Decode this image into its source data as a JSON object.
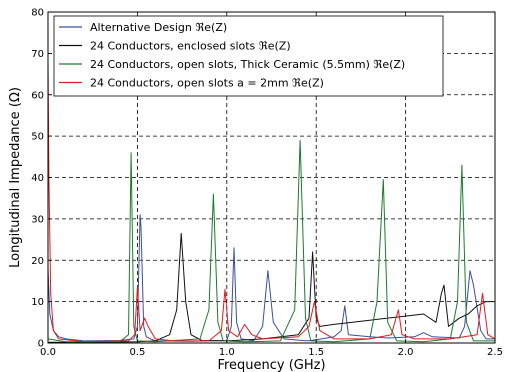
{
  "chart_data": {
    "type": "line",
    "title": "",
    "xlabel": "Frequency (GHz)",
    "ylabel": "Longitudinal Impedance (Ω)",
    "xlim": [
      0,
      2.5
    ],
    "ylim": [
      0,
      80
    ],
    "xticks": [
      0.0,
      0.5,
      1.0,
      1.5,
      2.0,
      2.5
    ],
    "xtick_labels": [
      "0.0",
      "0.5",
      "1.0",
      "1.5",
      "2.0",
      "2.5"
    ],
    "yticks": [
      0,
      10,
      20,
      30,
      40,
      50,
      60,
      70,
      80
    ],
    "ytick_labels": [
      "0",
      "10",
      "20",
      "30",
      "40",
      "50",
      "60",
      "70",
      "80"
    ],
    "grid": true,
    "legend_position": "top-left",
    "series": [
      {
        "name": "Alternative Design ℜe(Z)",
        "color": "#3b4fa0",
        "x": [
          0.0,
          0.01,
          0.03,
          0.06,
          0.1,
          0.2,
          0.4,
          0.48,
          0.5,
          0.515,
          0.52,
          0.535,
          0.55,
          0.6,
          0.8,
          1.0,
          1.025,
          1.04,
          1.055,
          1.08,
          1.15,
          1.2,
          1.23,
          1.26,
          1.32,
          1.45,
          1.5,
          1.6,
          1.64,
          1.66,
          1.68,
          1.8,
          1.9,
          2.05,
          2.1,
          2.15,
          2.3,
          2.33,
          2.36,
          2.38,
          2.42,
          2.45,
          2.5
        ],
        "y": [
          18,
          7,
          3,
          1.5,
          1,
          0.5,
          0.6,
          1,
          4,
          31,
          28,
          4,
          1.5,
          0.5,
          0.4,
          0.6,
          4,
          23,
          5,
          1,
          0.5,
          4,
          17.5,
          5,
          1,
          0.5,
          0.8,
          1.5,
          3,
          9,
          2,
          1.5,
          1.2,
          1.5,
          2.5,
          1.5,
          1.2,
          4,
          17.5,
          14,
          3,
          1,
          1
        ]
      },
      {
        "name": "24 Conductors, enclosed slots ℜe(Z)",
        "color": "#111111",
        "x": [
          0.0,
          0.1,
          0.5,
          0.6,
          0.68,
          0.72,
          0.745,
          0.77,
          0.8,
          0.86,
          1.0,
          1.2,
          1.4,
          1.46,
          1.48,
          1.5,
          1.52,
          1.6,
          1.8,
          2.0,
          2.1,
          2.17,
          2.2,
          2.215,
          2.24,
          2.3,
          2.35,
          2.4,
          2.45,
          2.5
        ],
        "y": [
          0.2,
          0.2,
          0.3,
          0.5,
          2,
          8,
          26.5,
          10,
          2,
          0.6,
          0.5,
          1,
          2,
          6,
          22,
          6,
          4,
          4.5,
          5.5,
          6.5,
          7,
          5,
          12,
          14,
          4,
          6,
          7,
          9,
          10,
          10
        ]
      },
      {
        "name": "24 Conductors, open slots, Thick Ceramic (5.5mm) ℜe(Z)",
        "color": "#1f7a2e",
        "x": [
          0.0,
          0.1,
          0.4,
          0.45,
          0.465,
          0.48,
          0.5,
          0.6,
          0.85,
          0.9,
          0.925,
          0.95,
          0.98,
          1.1,
          1.3,
          1.38,
          1.41,
          1.44,
          1.47,
          1.6,
          1.8,
          1.84,
          1.875,
          1.9,
          1.95,
          2.1,
          2.25,
          2.29,
          2.315,
          2.34,
          2.38,
          2.5
        ],
        "y": [
          1,
          0.3,
          0.3,
          2,
          46,
          4,
          0.5,
          0.3,
          1,
          8,
          36,
          5,
          0.5,
          0.3,
          0.5,
          8,
          49,
          6,
          0.5,
          0.3,
          1,
          10,
          39.5,
          5,
          0.5,
          0.3,
          1,
          10,
          43,
          5,
          0.5,
          0.5
        ]
      },
      {
        "name": "24 Conductors, open slots a = 2mm ℜe(Z)",
        "color": "#e41a1c",
        "x": [
          0.0,
          0.005,
          0.015,
          0.03,
          0.06,
          0.2,
          0.45,
          0.485,
          0.5,
          0.515,
          0.54,
          0.56,
          0.6,
          0.7,
          0.9,
          0.97,
          0.99,
          1.01,
          1.06,
          1.1,
          1.14,
          1.2,
          1.4,
          1.46,
          1.49,
          1.52,
          1.6,
          1.8,
          1.92,
          1.96,
          1.98,
          2.05,
          2.25,
          2.4,
          2.43,
          2.46,
          2.5
        ],
        "y": [
          68,
          40,
          12,
          3,
          1,
          0.3,
          0.5,
          2,
          13.5,
          3,
          6,
          4,
          1,
          0.5,
          0.5,
          3,
          13,
          3,
          1.5,
          4.5,
          2,
          1,
          1.5,
          4,
          10,
          3,
          1,
          1,
          2,
          8,
          2,
          1,
          1,
          2,
          12,
          2,
          1
        ]
      }
    ]
  }
}
